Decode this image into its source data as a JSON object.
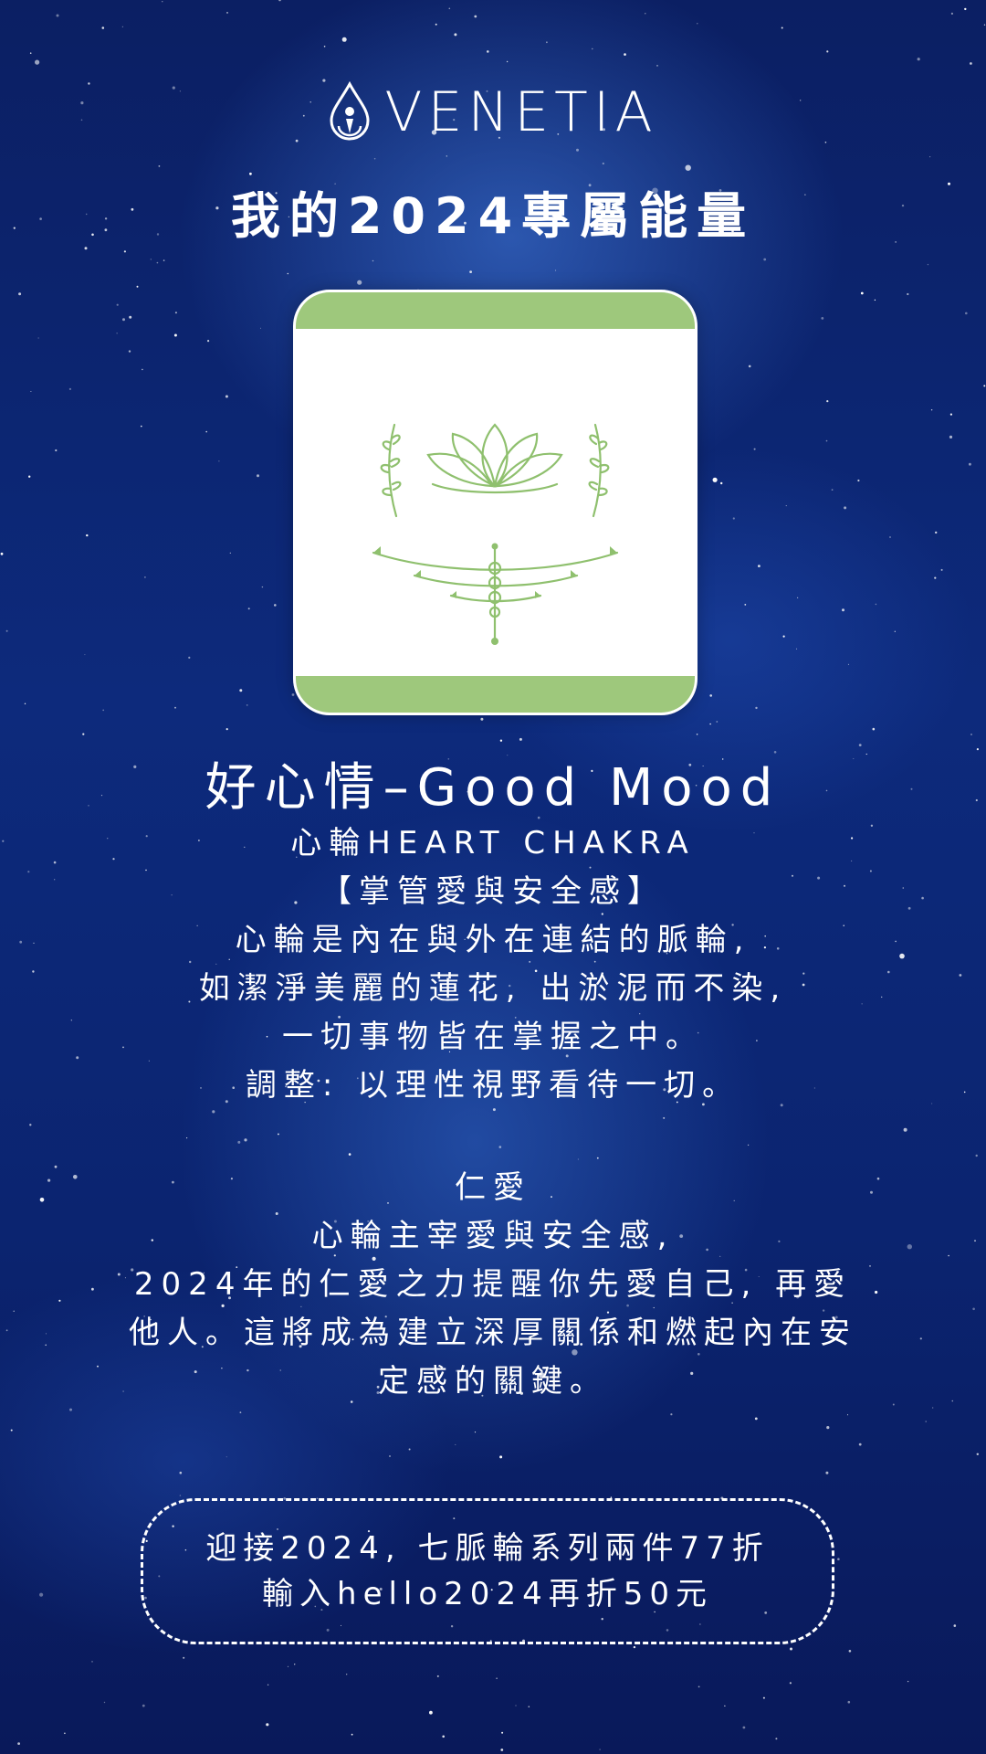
{
  "brand": {
    "name": "VENETIA",
    "logo_icon": "drop-circle-icon"
  },
  "title": "我的2024專屬能量",
  "card": {
    "illustration": "lotus-icon",
    "accent_color": "#9ec87c"
  },
  "mood": {
    "title": "好心情–Good Mood"
  },
  "description": {
    "lines": [
      "心輪HEART CHAKRA",
      "【掌管愛與安全感】",
      "心輪是內在與外在連結的脈輪,",
      "如潔淨美麗的蓮花, 出淤泥而不染,",
      "一切事物皆在掌握之中。",
      "調整: 以理性視野看待一切。"
    ]
  },
  "love": {
    "heading": "仁愛",
    "lines": [
      "心輪主宰愛與安全感,",
      "2024年的仁愛之力提醒你先愛自己, 再愛",
      "他人。這將成為建立深厚關係和燃起內在安",
      "定感的關鍵。"
    ]
  },
  "promo": {
    "line1": "迎接2024, 七脈輪系列兩件77折",
    "line2": "輸入hello2024再折50元"
  }
}
